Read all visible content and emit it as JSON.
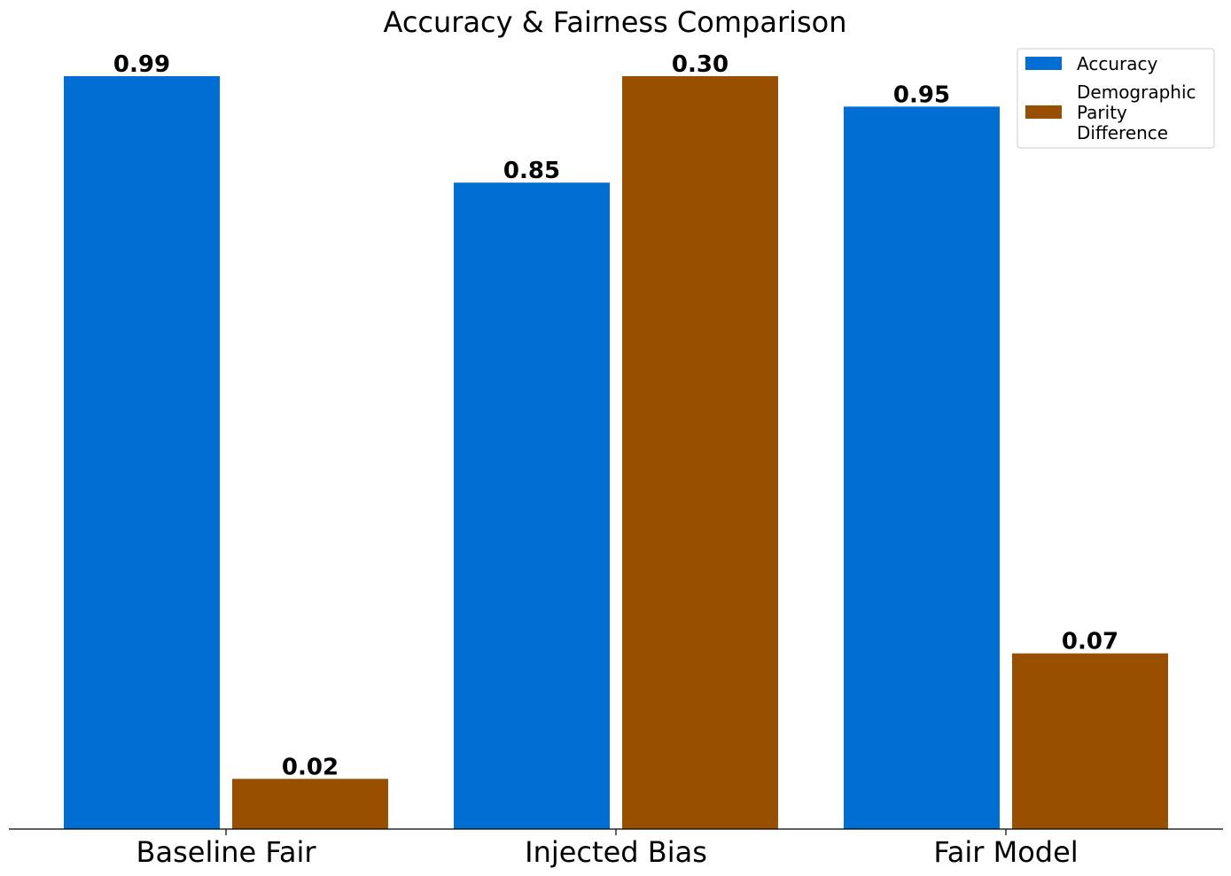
{
  "chart_data": {
    "type": "bar",
    "title": "Accuracy & Fairness Comparison",
    "xlabel": "",
    "ylabel": "",
    "categories": [
      "Baseline Fair",
      "Injected Bias",
      "Fair Model"
    ],
    "series": [
      {
        "name": "Accuracy",
        "values": [
          0.99,
          0.85,
          0.95
        ],
        "labels": [
          "0.99",
          "0.85",
          "0.95"
        ],
        "color": "#006ed3"
      },
      {
        "name": "Demographic Parity Difference",
        "values": [
          0.02,
          0.3,
          0.07
        ],
        "labels": [
          "0.02",
          "0.30",
          "0.07"
        ],
        "color": "#984f00"
      }
    ],
    "axis_scale_note": "each series scaled to its own maximum",
    "grid": false,
    "legend_position": "top-right",
    "legend_entries": [
      {
        "lines": [
          "Accuracy"
        ],
        "color": "#006ed3"
      },
      {
        "lines": [
          "Demographic",
          "Parity",
          "Difference"
        ],
        "color": "#984f00"
      }
    ]
  }
}
